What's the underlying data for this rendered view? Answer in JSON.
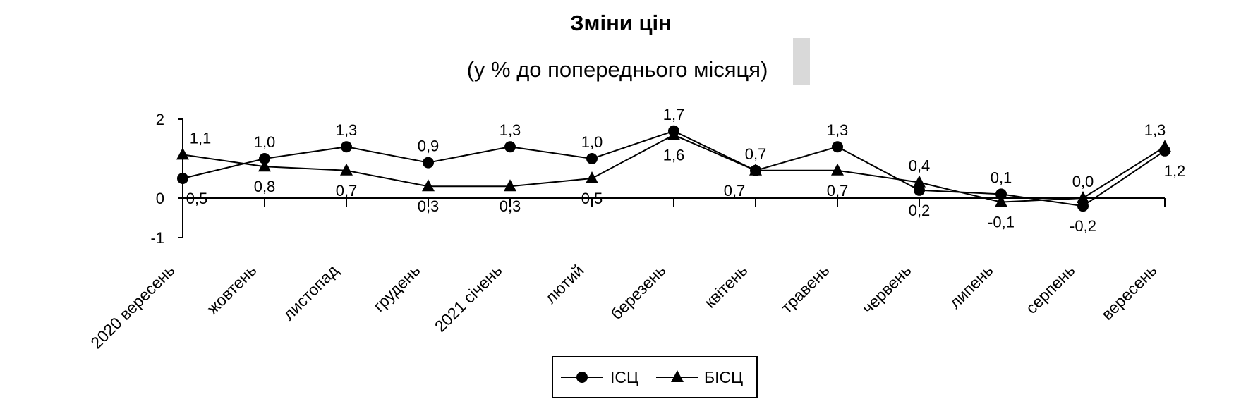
{
  "chart_data": {
    "type": "line",
    "title": "Зміни цін",
    "subtitle": "(у % до попереднього місяця)",
    "categories": [
      "2020 вересень",
      "жовтень",
      "листопад",
      "грудень",
      "2021 січень",
      "лютий",
      "березень",
      "квітень",
      "травень",
      "червень",
      "липень",
      "серпень",
      "вересень"
    ],
    "series": [
      {
        "name": "ІСЦ",
        "marker": "circle",
        "values": [
          0.5,
          1.0,
          1.3,
          0.9,
          1.3,
          1.0,
          1.7,
          0.7,
          1.3,
          0.2,
          0.1,
          -0.2,
          1.2
        ],
        "labels": [
          "0,5",
          "1,0",
          "1,3",
          "0,9",
          "1,3",
          "1,0",
          "1,7",
          "0,7",
          "1,3",
          "0,2",
          "0,1",
          "-0,2",
          "1,2"
        ]
      },
      {
        "name": "БІСЦ",
        "marker": "triangle",
        "values": [
          1.1,
          0.8,
          0.7,
          0.3,
          0.3,
          0.5,
          1.6,
          0.7,
          0.7,
          0.4,
          -0.1,
          0.0,
          1.3
        ],
        "labels": [
          "1,1",
          "0,8",
          "0,7",
          "0,3",
          "0,3",
          "0,5",
          "1,6",
          "0,7",
          "0,7",
          "0,4",
          "-0,1",
          "0,0",
          "1,3"
        ]
      }
    ],
    "ylim": [
      -1,
      2
    ],
    "yticks": [
      "-1",
      "0",
      "2"
    ],
    "ytick_values": [
      -1,
      0,
      2
    ],
    "xlabel": "",
    "ylabel": "",
    "grid": false,
    "legend": "bottom-center",
    "line_color": "#000000",
    "marker_color": "#000000"
  }
}
